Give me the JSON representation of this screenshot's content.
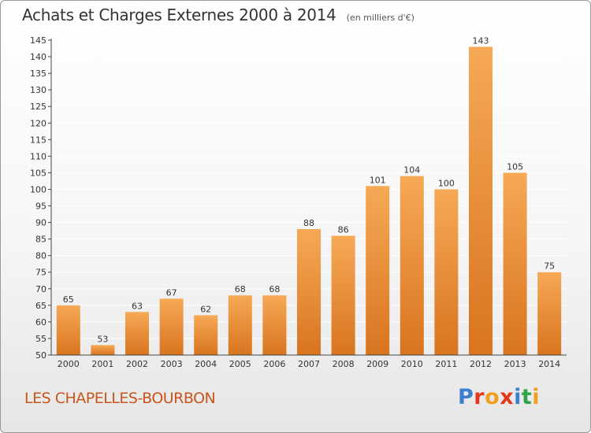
{
  "header": {
    "title": "Achats et Charges Externes 2000 à 2014",
    "unit": "(en milliers d'€)"
  },
  "footer": {
    "commune": "LES CHAPELLES-BOURBON",
    "brand": "Proxiti"
  },
  "colors": {
    "bar_light": "#f6a956",
    "bar_dark": "#d9741f",
    "axis": "#444444",
    "grid": "#ffffff",
    "commune": "#c9551c",
    "brand_letters": [
      "#3a7fd0",
      "#e2391e",
      "#f0a020",
      "#e2391e",
      "#3a7fd0",
      "#2fa34a",
      "#f0a020"
    ]
  },
  "chart_data": {
    "type": "bar",
    "title": "Achats et Charges Externes 2000 à 2014",
    "subtitle": "(en milliers d'€)",
    "categories": [
      "2000",
      "2001",
      "2002",
      "2003",
      "2004",
      "2005",
      "2006",
      "2007",
      "2008",
      "2009",
      "2010",
      "2011",
      "2012",
      "2013",
      "2014"
    ],
    "values": [
      65,
      53,
      63,
      67,
      62,
      68,
      68,
      88,
      86,
      101,
      104,
      100,
      143,
      105,
      75
    ],
    "ylim": [
      50,
      145
    ],
    "yticks": [
      50,
      55,
      60,
      65,
      70,
      75,
      80,
      85,
      90,
      95,
      100,
      105,
      110,
      115,
      120,
      125,
      130,
      135,
      140,
      145
    ],
    "grid": true,
    "legend": false
  }
}
